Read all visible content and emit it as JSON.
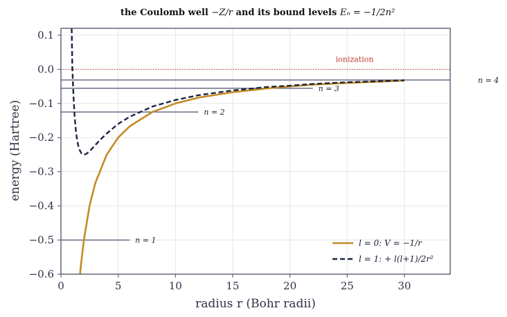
{
  "chart_data": {
    "type": "line",
    "title": "the Coulomb well −Z/r and its bound levels Eₙ = −1/2n²",
    "title_parts": {
      "prefix": "the Coulomb well ",
      "well": "−Z/r",
      "middle": " and its bound levels ",
      "levels": "Eₙ = −1/2n²"
    },
    "xlabel": "radius r (Bohr radii)",
    "ylabel": "energy (Hartree)",
    "xlim": [
      0,
      34
    ],
    "ylim": [
      -0.6,
      0.12
    ],
    "x_ticks": [
      0,
      5,
      10,
      15,
      20,
      25,
      30
    ],
    "y_ticks": [
      0.1,
      0.0,
      -0.1,
      -0.2,
      -0.3,
      -0.4,
      -0.5,
      -0.6
    ],
    "x_tick_labels": [
      "0",
      "5",
      "10",
      "15",
      "20",
      "25",
      "30"
    ],
    "y_tick_labels": [
      "0.1",
      "0.0",
      "−0.1",
      "−0.2",
      "−0.3",
      "−0.4",
      "−0.5",
      "−0.6"
    ],
    "grid": true,
    "legend_position": "lower-right",
    "series": [
      {
        "name": "l = 0: V = −1/r",
        "style": "solid",
        "color": "#c48a24",
        "x": [
          1.67,
          1.8,
          2.0,
          2.5,
          3.0,
          4.0,
          5.0,
          6.0,
          8.0,
          10.0,
          12.0,
          15.0,
          18.0,
          20.0,
          22.0,
          25.0,
          28.0,
          30.0
        ],
        "y": [
          -0.599,
          -0.556,
          -0.5,
          -0.4,
          -0.333,
          -0.25,
          -0.2,
          -0.167,
          -0.125,
          -0.1,
          -0.083,
          -0.067,
          -0.056,
          -0.05,
          -0.045,
          -0.04,
          -0.036,
          -0.033
        ]
      },
      {
        "name": "l = 1: + l(l+1)/2r²",
        "style": "dashed",
        "color": "#1b2340",
        "x": [
          0.94,
          1.0,
          1.1,
          1.2,
          1.3,
          1.4,
          1.5,
          1.6,
          1.8,
          2.0,
          2.2,
          2.5,
          3.0,
          3.5,
          4.0,
          5.0,
          6.0,
          8.0,
          10.0,
          12.0,
          15.0,
          18.0,
          20.0,
          22.0,
          25.0,
          28.0,
          30.0
        ],
        "y": [
          0.12,
          0.0,
          -0.083,
          -0.139,
          -0.178,
          -0.204,
          -0.222,
          -0.234,
          -0.247,
          -0.25,
          -0.248,
          -0.24,
          -0.222,
          -0.204,
          -0.188,
          -0.16,
          -0.139,
          -0.109,
          -0.09,
          -0.076,
          -0.062,
          -0.052,
          -0.048,
          -0.043,
          -0.038,
          -0.035,
          -0.032
        ]
      }
    ],
    "levels": [
      {
        "label": "n = 1",
        "energy": -0.5,
        "x_end": 6
      },
      {
        "label": "n = 2",
        "energy": -0.125,
        "x_end": 12
      },
      {
        "label": "n = 3",
        "energy": -0.0556,
        "x_end": 22
      },
      {
        "label": "n = 4",
        "energy": -0.03125,
        "x_end": 36
      }
    ],
    "ionization": {
      "label": "ionization",
      "energy": 0.0,
      "label_x": 24
    },
    "colors": {
      "l0": "#c48a24",
      "l1": "#1b2340",
      "levels": "#5a6178",
      "ionization": "#c0392b",
      "axes": "#4a5068",
      "grid": "#dedede"
    }
  }
}
